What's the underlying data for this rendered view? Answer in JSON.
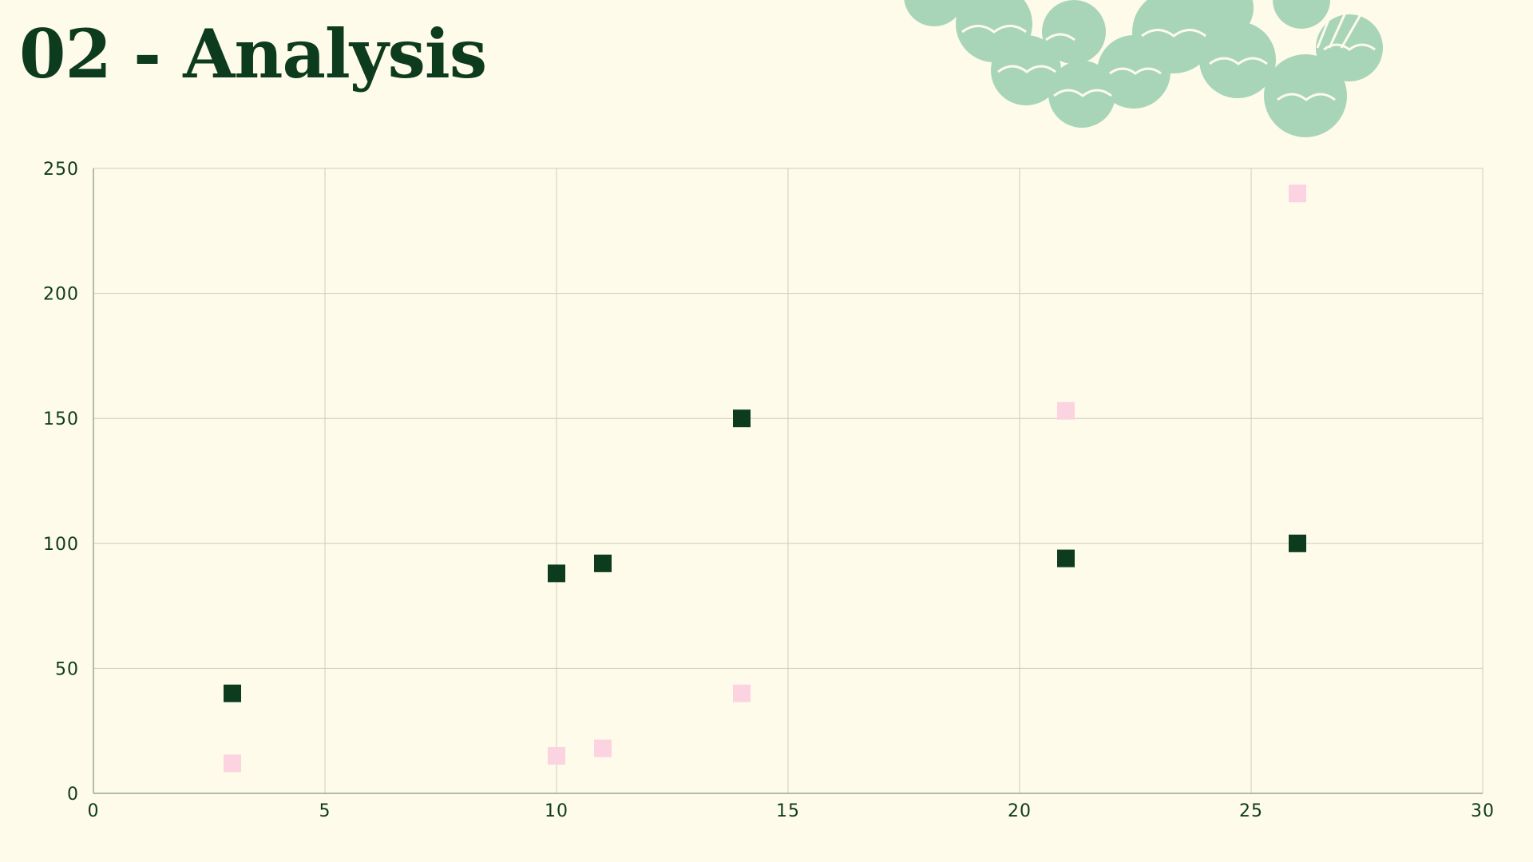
{
  "slide": {
    "title": "02 - Analysis"
  },
  "colors": {
    "background": "#fefbea",
    "title": "#0d3b1e",
    "ink": "#0d3b1e",
    "grid": "#c9cfbc",
    "axis": "#9aa894",
    "decoration_fill": "#a8d5b8",
    "decoration_line": "#fefbea",
    "series_dark": "#0d3b1e",
    "series_pink": "#fcd3e0"
  },
  "decoration": {
    "icon": "cabbage-leaves-icon"
  },
  "chart_data": {
    "type": "scatter",
    "title": "",
    "xlabel": "",
    "ylabel": "",
    "xlim": [
      0,
      30
    ],
    "ylim": [
      0,
      250
    ],
    "x_ticks": [
      0,
      5,
      10,
      15,
      20,
      25,
      30
    ],
    "y_ticks": [
      0,
      50,
      100,
      150,
      200,
      250
    ],
    "grid": true,
    "legend": "none",
    "marker": "square",
    "series": [
      {
        "color": "#0d3b1e",
        "points": [
          {
            "x": 3,
            "y": 40
          },
          {
            "x": 10,
            "y": 88
          },
          {
            "x": 11,
            "y": 92
          },
          {
            "x": 14,
            "y": 150
          },
          {
            "x": 21,
            "y": 94
          },
          {
            "x": 26,
            "y": 100
          }
        ]
      },
      {
        "color": "#fcd3e0",
        "points": [
          {
            "x": 3,
            "y": 12
          },
          {
            "x": 10,
            "y": 15
          },
          {
            "x": 11,
            "y": 18
          },
          {
            "x": 14,
            "y": 40
          },
          {
            "x": 21,
            "y": 153
          },
          {
            "x": 26,
            "y": 240
          }
        ]
      }
    ]
  }
}
